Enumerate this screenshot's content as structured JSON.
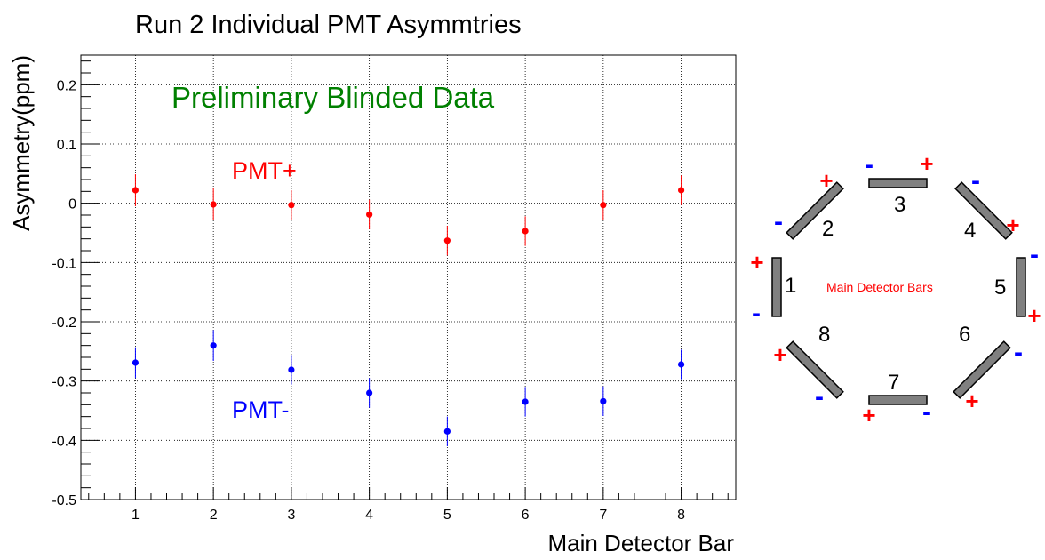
{
  "chart_data": {
    "type": "scatter",
    "title": "Run 2 Individual PMT Asymmtries",
    "xlabel": "Main Detector Bar",
    "ylabel": "Asymmetry(ppm)",
    "xlim": [
      0.3,
      8.7
    ],
    "ylim": [
      -0.5,
      0.25
    ],
    "x_ticks": [
      "1",
      "2",
      "3",
      "4",
      "5",
      "6",
      "7",
      "8"
    ],
    "y_ticks": [
      "0.2",
      "0.1",
      "0",
      "-0.1",
      "-0.2",
      "-0.3",
      "-0.4",
      "-0.5"
    ],
    "y_tick_values": [
      0.2,
      0.1,
      0,
      -0.1,
      -0.2,
      -0.3,
      -0.4,
      -0.5
    ],
    "grid": true,
    "annotation": "Preliminary  Blinded  Data",
    "series": [
      {
        "name": "PMT+",
        "color": "#ff0000",
        "x": [
          1,
          2,
          3,
          4,
          5,
          6,
          7,
          8
        ],
        "y": [
          0.022,
          -0.002,
          -0.003,
          -0.019,
          -0.063,
          -0.047,
          -0.003,
          0.022
        ],
        "err": [
          0.027,
          0.027,
          0.025,
          0.025,
          0.025,
          0.025,
          0.025,
          0.025
        ]
      },
      {
        "name": "PMT-",
        "color": "#0000ff",
        "x": [
          1,
          2,
          3,
          4,
          5,
          6,
          7,
          8
        ],
        "y": [
          -0.269,
          -0.24,
          -0.281,
          -0.32,
          -0.385,
          -0.335,
          -0.334,
          -0.272
        ],
        "err": [
          0.026,
          0.026,
          0.025,
          0.025,
          0.025,
          0.025,
          0.025,
          0.025
        ]
      }
    ]
  },
  "detector": {
    "caption": "Main Detector Bars",
    "bars": [
      {
        "num": "1",
        "plus": "+",
        "minus": "-"
      },
      {
        "num": "2",
        "plus": "+",
        "minus": "-"
      },
      {
        "num": "3",
        "plus": "+",
        "minus": "-"
      },
      {
        "num": "4",
        "plus": "+",
        "minus": "-"
      },
      {
        "num": "5",
        "plus": "+",
        "minus": "-"
      },
      {
        "num": "6",
        "plus": "+",
        "minus": "-"
      },
      {
        "num": "7",
        "plus": "+",
        "minus": "-"
      },
      {
        "num": "8",
        "plus": "+",
        "minus": "-"
      }
    ]
  },
  "colors": {
    "plus": "#ff0000",
    "minus": "#0000ff",
    "annotation": "#008000",
    "bar_fill": "#808080"
  }
}
